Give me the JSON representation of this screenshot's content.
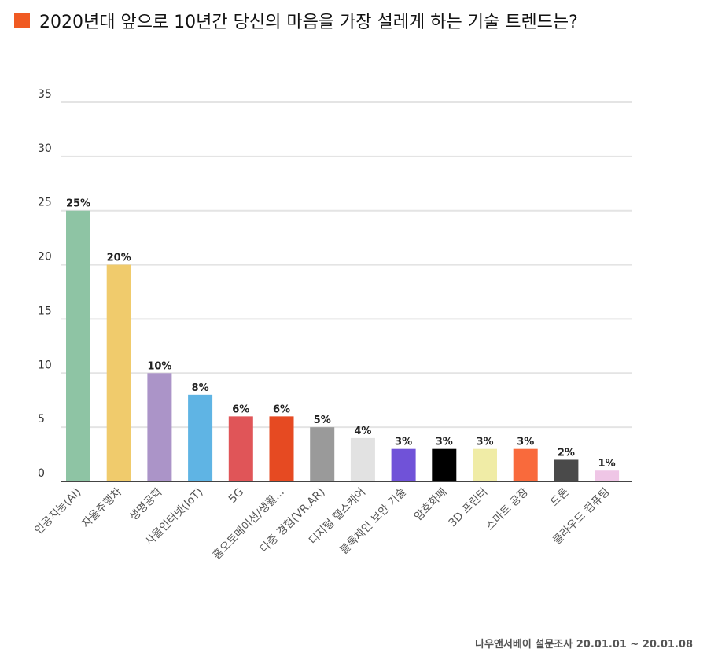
{
  "title": "2020년대 앞으로 10년간 당신의 마음을 가장 설레게 하는 기술 트렌드는?",
  "accent_color": "#f05a22",
  "source": "나우앤서베이 설문조사 20.01.01 ~ 20.01.08",
  "chart_data": {
    "type": "bar",
    "ylim": [
      0,
      35
    ],
    "yticks": [
      0,
      5,
      10,
      15,
      20,
      25,
      30,
      35
    ],
    "grid": true,
    "categories": [
      "인공지능(AI)",
      "자율주행차",
      "생명공학",
      "사물인터넷(IoT)",
      "5G",
      "홈오토메이션/생활...",
      "다중 경험(VR.AR)",
      "디지털 헬스케어",
      "블록체인 보안 기술",
      "암호화폐",
      "3D 프린터",
      "스마트 공장",
      "드론",
      "클라우드 컴퓨팅"
    ],
    "values": [
      25,
      20,
      10,
      8,
      6,
      6,
      5,
      4,
      3,
      3,
      3,
      3,
      2,
      1
    ],
    "labels": [
      "25%",
      "20%",
      "10%",
      "8%",
      "6%",
      "6%",
      "5%",
      "4%",
      "3%",
      "3%",
      "3%",
      "3%",
      "2%",
      "1%"
    ],
    "colors": [
      "#8ec4a4",
      "#f0cb6c",
      "#ab94c8",
      "#5fb4e4",
      "#e05558",
      "#e64a22",
      "#9a9a9a",
      "#e2e2e2",
      "#7052d8",
      "#000000",
      "#f0eca6",
      "#f96a3c",
      "#4a4a4a",
      "#efc6e6"
    ]
  }
}
